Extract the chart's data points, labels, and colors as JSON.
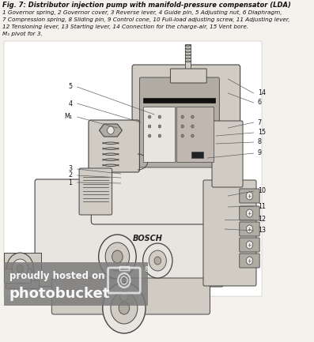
{
  "title_line1": "Fig. 7: Distributor injection pump with manifold-pressure compensator (LDA)",
  "title_line2": "1 Governor spring, 2 Governor cover, 3 Reverse lever, 4 Guide pin, 5 Adjusting nut, 6 Diaphragm,",
  "title_line3": "7 Compression spring, 8 Sliding pin, 9 Control cone, 10 Full-load adjusting screw, 11 Adjusting lever,",
  "title_line4": "12 Tensioning lever, 13 Starting lever, 14 Connection for the charge-air, 15 Vent bore.",
  "title_line5": "M₁ pivot for 3.",
  "bg_color": "#f5f2ee",
  "watermark_bg": "#7a7a7a",
  "watermark_text1": "proudly hosted on",
  "watermark_text2": "photobucket",
  "bosch_label": "BOSCH",
  "fig_width": 3.97,
  "fig_height": 4.33,
  "dpi": 100,
  "label_positions": [
    [
      "5",
      108,
      110,
      "right"
    ],
    [
      "4",
      108,
      131,
      "right"
    ],
    [
      "M₁",
      108,
      148,
      "right"
    ],
    [
      "3",
      108,
      214,
      "right"
    ],
    [
      "2",
      108,
      222,
      "right"
    ],
    [
      "1",
      108,
      231,
      "right"
    ],
    [
      "14",
      384,
      118,
      "left"
    ],
    [
      "6",
      384,
      130,
      "left"
    ],
    [
      "7",
      384,
      155,
      "left"
    ],
    [
      "15",
      384,
      168,
      "left"
    ],
    [
      "8",
      384,
      180,
      "left"
    ],
    [
      "9",
      384,
      194,
      "left"
    ],
    [
      "10",
      384,
      242,
      "left"
    ],
    [
      "11",
      384,
      261,
      "left"
    ],
    [
      "12",
      384,
      278,
      "left"
    ],
    [
      "13",
      384,
      292,
      "left"
    ]
  ],
  "leader_lines": [
    [
      115,
      110,
      230,
      145
    ],
    [
      115,
      131,
      210,
      155
    ],
    [
      115,
      148,
      175,
      162
    ],
    [
      115,
      214,
      180,
      220
    ],
    [
      115,
      222,
      180,
      225
    ],
    [
      115,
      231,
      180,
      232
    ],
    [
      378,
      118,
      340,
      100
    ],
    [
      378,
      130,
      340,
      118
    ],
    [
      378,
      155,
      340,
      162
    ],
    [
      378,
      168,
      322,
      172
    ],
    [
      378,
      180,
      322,
      182
    ],
    [
      378,
      194,
      310,
      200
    ],
    [
      378,
      242,
      340,
      248
    ],
    [
      378,
      261,
      340,
      262
    ],
    [
      378,
      278,
      335,
      278
    ],
    [
      378,
      292,
      335,
      290
    ]
  ]
}
